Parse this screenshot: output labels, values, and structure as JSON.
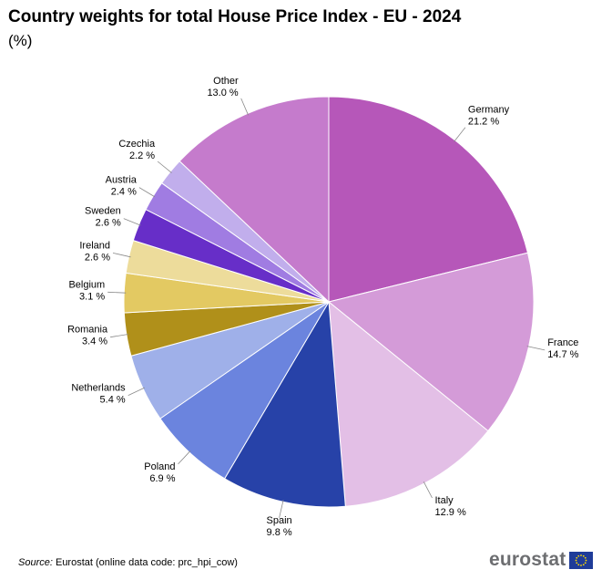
{
  "title": "Country weights for total House Price Index - EU - 2024",
  "subtitle": "(%)",
  "source_label": "Source:",
  "source_text": " Eurostat (online data code: prc_hpi_cow)",
  "logo_text": "eurostat",
  "chart_data": {
    "type": "pie",
    "unit": "%",
    "slices": [
      {
        "name": "Germany",
        "value": 21.2,
        "label": "21.2 %",
        "color": "#b657b9"
      },
      {
        "name": "France",
        "value": 14.7,
        "label": "14.7 %",
        "color": "#d49bd8"
      },
      {
        "name": "Italy",
        "value": 12.9,
        "label": "12.9 %",
        "color": "#e3bfe6"
      },
      {
        "name": "Spain",
        "value": 9.8,
        "label": "9.8 %",
        "color": "#2742a8"
      },
      {
        "name": "Poland",
        "value": 6.9,
        "label": "6.9 %",
        "color": "#6b84de"
      },
      {
        "name": "Netherlands",
        "value": 5.4,
        "label": "5.4 %",
        "color": "#9fb0e9"
      },
      {
        "name": "Romania",
        "value": 3.4,
        "label": "3.4 %",
        "color": "#b0901a"
      },
      {
        "name": "Belgium",
        "value": 3.1,
        "label": "3.1 %",
        "color": "#e3c962"
      },
      {
        "name": "Ireland",
        "value": 2.6,
        "label": "2.6 %",
        "color": "#eddc9b"
      },
      {
        "name": "Sweden",
        "value": 2.6,
        "label": "2.6 %",
        "color": "#672ec8"
      },
      {
        "name": "Austria",
        "value": 2.4,
        "label": "2.4 %",
        "color": "#a07ce2"
      },
      {
        "name": "Czechia",
        "value": 2.2,
        "label": "2.2 %",
        "color": "#c1aeec"
      },
      {
        "name": "Other",
        "value": 13.0,
        "label": "13.0 %",
        "color": "#c57bcc"
      }
    ]
  }
}
